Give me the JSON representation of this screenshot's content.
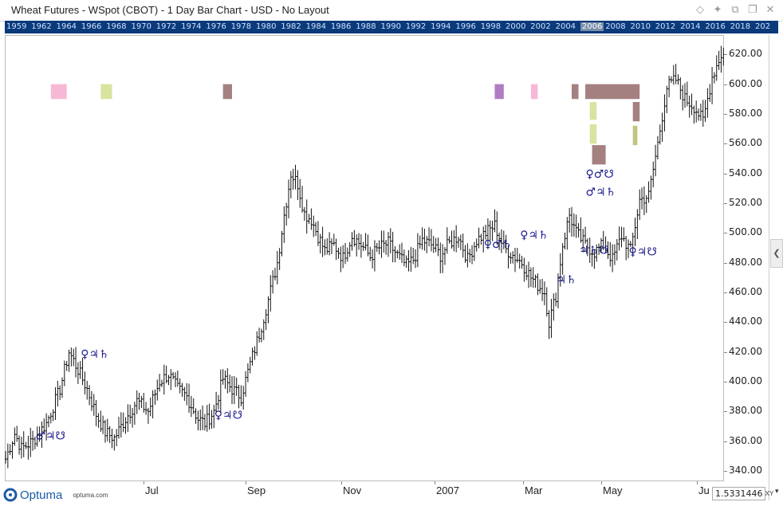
{
  "window": {
    "title": "Wheat Futures - WSpot (CBOT) - 1 Day Bar Chart - USD - No Layout"
  },
  "toolbar_icons": [
    "diamond-icon",
    "pin-icon",
    "copy-icon",
    "restore-icon",
    "close-icon"
  ],
  "yearbar": {
    "years": [
      "1959",
      "1962",
      "1964",
      "1966",
      "1968",
      "1970",
      "1972",
      "1974",
      "1976",
      "1978",
      "1980",
      "1982",
      "1984",
      "1986",
      "1988",
      "1990",
      "1992",
      "1994",
      "1996",
      "1998",
      "2000",
      "2002",
      "2004",
      "2006",
      "2008",
      "2010",
      "2012",
      "2014",
      "2016",
      "2018",
      "202"
    ],
    "selected": "2006"
  },
  "x_axis": {
    "labels": [
      "Jul",
      "Sep",
      "Nov",
      "2007",
      "Mar",
      "May",
      "Ju"
    ]
  },
  "logo": {
    "name": "Optuma",
    "url": "optuma.com"
  },
  "readout": {
    "value": "1.5331446",
    "mode": "XY"
  },
  "chart_data": {
    "type": "bar",
    "title": "Wheat Futures - WSpot (CBOT) - 1 Day Bar Chart - USD",
    "yticks": [
      340,
      360,
      380,
      400,
      420,
      440,
      460,
      480,
      500,
      520,
      540,
      560,
      580,
      600,
      620
    ],
    "ytick_labels": [
      "340.00",
      "360.00",
      "380.00",
      "400.00",
      "420.00",
      "440.00",
      "460.00",
      "480.00",
      "500.00",
      "520.00",
      "540.00",
      "560.00",
      "580.00",
      "600.00",
      "620.00"
    ],
    "ylim": [
      333,
      633
    ],
    "anchors": [
      [
        0,
        348
      ],
      [
        4,
        365
      ],
      [
        7,
        355
      ],
      [
        12,
        360
      ],
      [
        18,
        372
      ],
      [
        24,
        395
      ],
      [
        28,
        420
      ],
      [
        32,
        408
      ],
      [
        36,
        395
      ],
      [
        40,
        378
      ],
      [
        44,
        366
      ],
      [
        48,
        362
      ],
      [
        53,
        375
      ],
      [
        58,
        387
      ],
      [
        63,
        380
      ],
      [
        68,
        400
      ],
      [
        72,
        405
      ],
      [
        76,
        395
      ],
      [
        80,
        390
      ],
      [
        85,
        375
      ],
      [
        88,
        372
      ],
      [
        92,
        380
      ],
      [
        96,
        402
      ],
      [
        100,
        395
      ],
      [
        104,
        390
      ],
      [
        108,
        412
      ],
      [
        112,
        432
      ],
      [
        116,
        455
      ],
      [
        120,
        480
      ],
      [
        123,
        512
      ],
      [
        126,
        540
      ],
      [
        129,
        533
      ],
      [
        132,
        513
      ],
      [
        135,
        509
      ],
      [
        138,
        498
      ],
      [
        141,
        488
      ],
      [
        145,
        492
      ],
      [
        149,
        483
      ],
      [
        153,
        498
      ],
      [
        157,
        492
      ],
      [
        161,
        484
      ],
      [
        165,
        490
      ],
      [
        169,
        493
      ],
      [
        173,
        485
      ],
      [
        177,
        478
      ],
      [
        180,
        482
      ],
      [
        184,
        495
      ],
      [
        188,
        492
      ],
      [
        192,
        485
      ],
      [
        196,
        493
      ],
      [
        200,
        498
      ],
      [
        204,
        482
      ],
      [
        208,
        495
      ],
      [
        212,
        500
      ],
      [
        216,
        505
      ],
      [
        220,
        490
      ],
      [
        224,
        485
      ],
      [
        228,
        480
      ],
      [
        232,
        470
      ],
      [
        235,
        465
      ],
      [
        238,
        460
      ],
      [
        240,
        440
      ],
      [
        243,
        458
      ],
      [
        246,
        492
      ],
      [
        249,
        512
      ],
      [
        252,
        500
      ],
      [
        256,
        492
      ],
      [
        260,
        487
      ],
      [
        264,
        492
      ],
      [
        268,
        482
      ],
      [
        272,
        498
      ],
      [
        276,
        488
      ],
      [
        280,
        522
      ],
      [
        284,
        525
      ],
      [
        288,
        560
      ],
      [
        292,
        598
      ],
      [
        296,
        603
      ],
      [
        300,
        590
      ],
      [
        304,
        585
      ],
      [
        308,
        575
      ],
      [
        312,
        605
      ],
      [
        316,
        620
      ]
    ],
    "n_bars": 318,
    "annotations": [
      {
        "text": "♂♃☋",
        "idx": 16,
        "price": 361
      },
      {
        "text": "♀♃♄",
        "idx": 36,
        "price": 416
      },
      {
        "text": "♀♃☋",
        "idx": 95,
        "price": 375
      },
      {
        "text": "♀♂♄",
        "idx": 214,
        "price": 490
      },
      {
        "text": "♀♃♄",
        "idx": 230,
        "price": 496
      },
      {
        "text": "♃♄",
        "idx": 246,
        "price": 466
      },
      {
        "text": "♃♄☋",
        "idx": 256,
        "price": 486
      },
      {
        "text": "♀♂☋",
        "idx": 259,
        "price": 537
      },
      {
        "text": "♂♃♄",
        "idx": 259,
        "price": 525
      },
      {
        "text": "♀♃☋",
        "idx": 278,
        "price": 485
      }
    ],
    "cycle_bands": [
      {
        "idx0": 20,
        "idx1": 27,
        "p0": 600,
        "p1": 590,
        "color": "#f7b8d6"
      },
      {
        "idx0": 42,
        "idx1": 47,
        "p0": 600,
        "p1": 590,
        "color": "#d8e3a0"
      },
      {
        "idx0": 96,
        "idx1": 100,
        "p0": 600,
        "p1": 590,
        "color": "#a58080"
      },
      {
        "idx0": 216,
        "idx1": 220,
        "p0": 600,
        "p1": 590,
        "color": "#b07cc2"
      },
      {
        "idx0": 232,
        "idx1": 235,
        "p0": 600,
        "p1": 590,
        "color": "#f7b8d6"
      },
      {
        "idx0": 250,
        "idx1": 253,
        "p0": 600,
        "p1": 590,
        "color": "#a58080"
      },
      {
        "idx0": 256,
        "idx1": 280,
        "p0": 600,
        "p1": 590,
        "color": "#a58080"
      },
      {
        "idx0": 258,
        "idx1": 261,
        "p0": 588,
        "p1": 576,
        "color": "#d8e3a0"
      },
      {
        "idx0": 258,
        "idx1": 261,
        "p0": 573,
        "p1": 560,
        "color": "#d8e3a0"
      },
      {
        "idx0": 277,
        "idx1": 280,
        "p0": 588,
        "p1": 575,
        "color": "#a58080"
      },
      {
        "idx0": 277,
        "idx1": 279,
        "p0": 572,
        "p1": 559,
        "color": "#c4c480"
      },
      {
        "idx0": 259,
        "idx1": 265,
        "p0": 559,
        "p1": 546,
        "color": "#a58080"
      }
    ]
  },
  "colors": {
    "yearbar_bg": "#0a3a7a",
    "annotation": "#1a1a8c",
    "bars": "#111111"
  }
}
